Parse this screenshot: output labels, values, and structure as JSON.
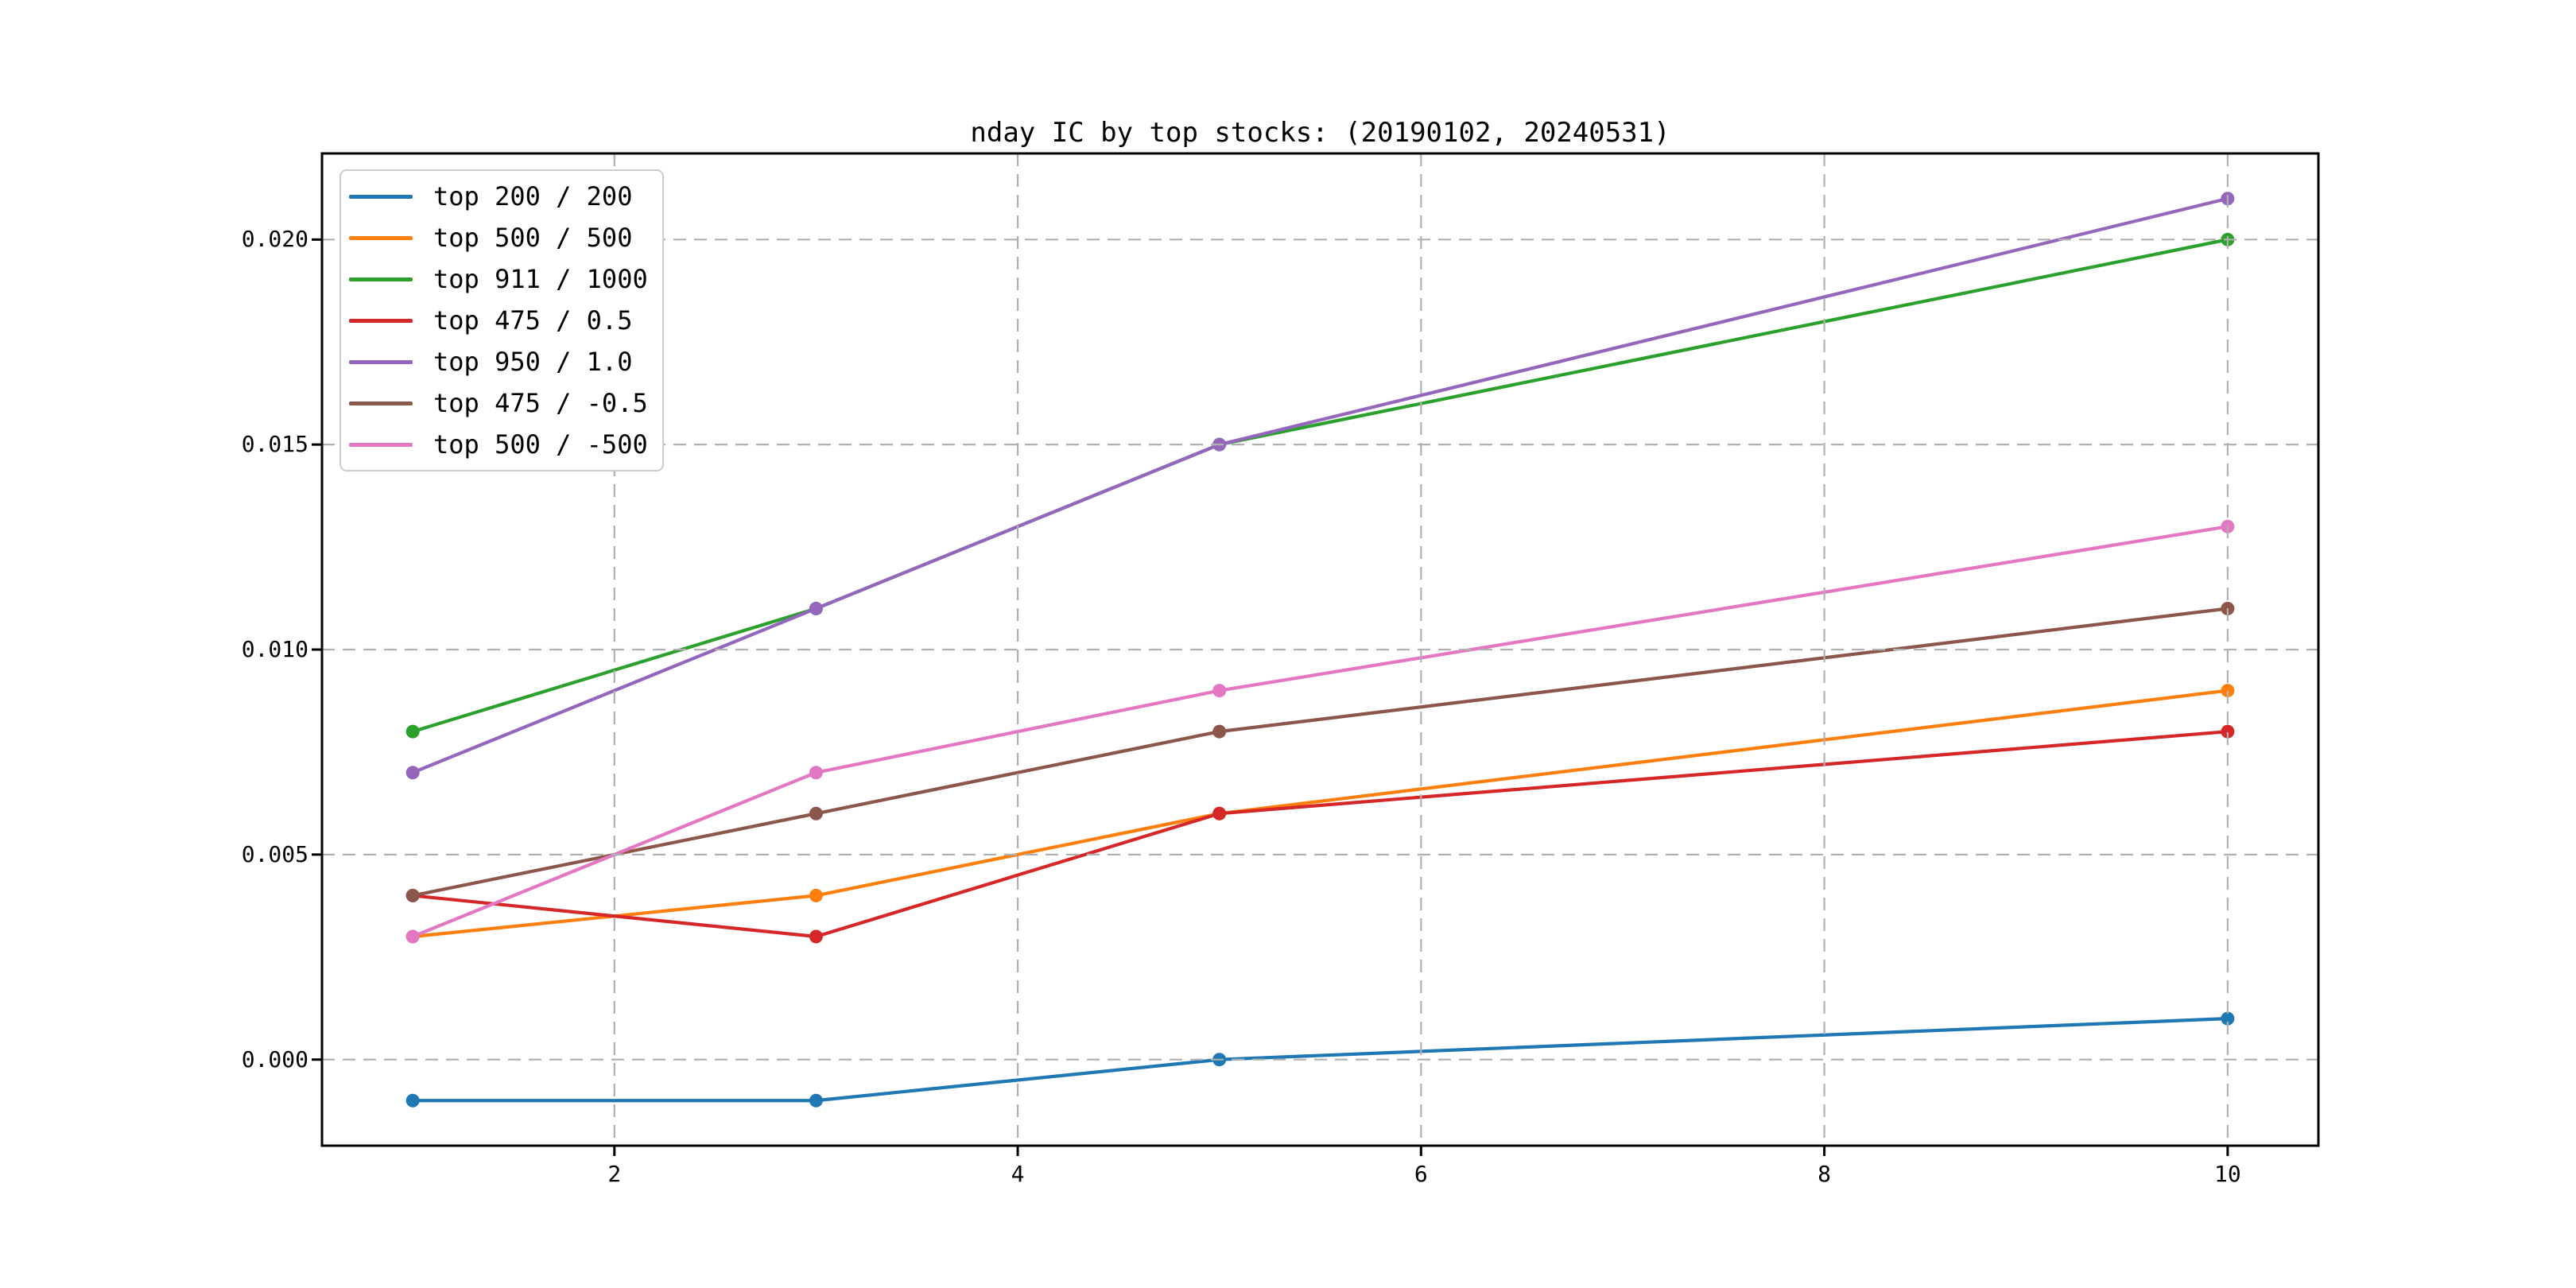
{
  "chart_data": {
    "type": "line",
    "title": "nday IC by top stocks: (20190102, 20240531)",
    "xlabel": "",
    "ylabel": "",
    "x": [
      1,
      3,
      5,
      10
    ],
    "series": [
      {
        "name": "top 200 / 200",
        "color": "#1f77b4",
        "values": [
          -0.001,
          -0.001,
          0.0,
          0.001
        ]
      },
      {
        "name": "top 500 / 500",
        "color": "#ff7f0e",
        "values": [
          0.003,
          0.004,
          0.006,
          0.009
        ]
      },
      {
        "name": "top 911 / 1000",
        "color": "#2ca02c",
        "values": [
          0.008,
          0.011,
          0.015,
          0.02
        ]
      },
      {
        "name": "top 475 / 0.5",
        "color": "#d62728",
        "values": [
          0.004,
          0.003,
          0.006,
          0.008
        ]
      },
      {
        "name": "top 950 / 1.0",
        "color": "#9467bd",
        "values": [
          0.007,
          0.011,
          0.015,
          0.021
        ]
      },
      {
        "name": "top 475 / -0.5",
        "color": "#8c564b",
        "values": [
          0.004,
          0.006,
          0.008,
          0.011
        ]
      },
      {
        "name": "top 500 / -500",
        "color": "#e377c2",
        "values": [
          0.003,
          0.007,
          0.009,
          0.013
        ]
      }
    ],
    "xticks": [
      2,
      4,
      6,
      8,
      10
    ],
    "yticks": [
      {
        "value": 0.0,
        "label": "0.000"
      },
      {
        "value": 0.005,
        "label": "0.005"
      },
      {
        "value": 0.01,
        "label": "0.010"
      },
      {
        "value": 0.015,
        "label": "0.015"
      },
      {
        "value": 0.02,
        "label": "0.020"
      }
    ],
    "xlim": [
      0.55,
      10.45
    ],
    "ylim": [
      -0.0021,
      0.0221
    ],
    "grid": true,
    "grid_style": "dashed",
    "grid_color": "#b0b0b0",
    "axis_color": "#000000",
    "background_color": "#ffffff",
    "legend_position": "upper left",
    "marker": "o"
  }
}
